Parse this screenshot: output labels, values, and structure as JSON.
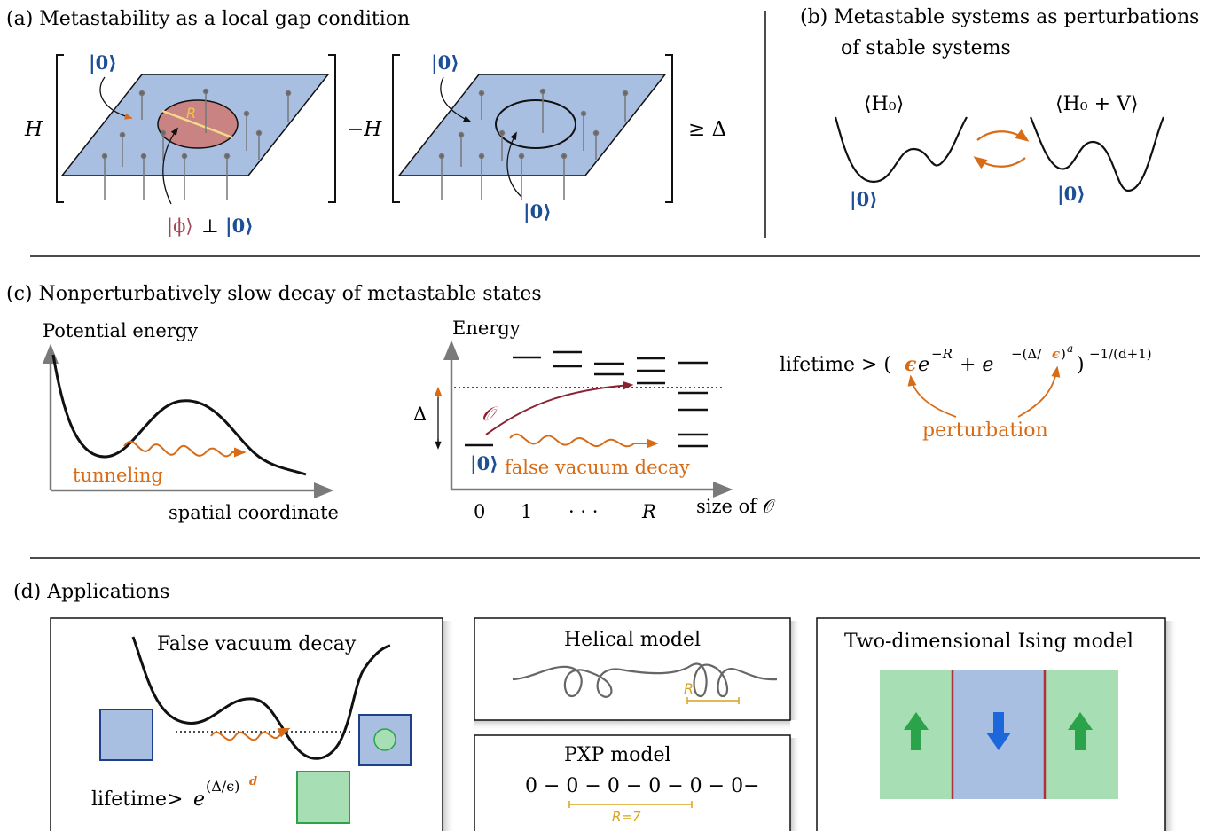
{
  "panel_a": {
    "title": "(a) Metastability as a local gap condition",
    "H": "H",
    "minus_H": "−H",
    "ket0": "|0⟩",
    "R": "R",
    "phi": "|ϕ⟩",
    "perp": "⊥",
    "geq": "≥ Δ"
  },
  "panel_b": {
    "title_line1": "(b) Metastable systems as perturbations",
    "title_line2": "of stable systems",
    "H0": "⟨H₀⟩",
    "H0V": "⟨H₀ + V⟩",
    "ket0": "|0⟩"
  },
  "panel_c": {
    "title": "(c) Nonperturbatively slow decay of metastable states",
    "potential_energy": "Potential energy",
    "spatial_coordinate": "spatial coordinate",
    "tunneling": "tunneling",
    "energy": "Energy",
    "delta": "Δ",
    "O": "𝒪",
    "ket0": "|0⟩",
    "false_vacuum_decay": "false vacuum decay",
    "ticks": [
      "0",
      "1",
      "· · ·",
      "R"
    ],
    "size_of_O": "size of 𝒪",
    "lifetime_prefix": "lifetime > (",
    "eps": "ϵ",
    "e_part1": "e",
    "exp1": "−R",
    "plus_e": " + e",
    "exp2_a": "−(Δ/",
    "exp2_eps": "ϵ",
    "exp2_b": ")",
    "exp2_sup": "a",
    "close_paren": ")",
    "exp3": "−1/(d+1)",
    "perturbation": "perturbation"
  },
  "panel_d": {
    "title": "(d) Applications",
    "false_vacuum": {
      "title": "False vacuum decay",
      "lifetime": "lifetime>",
      "e": "e",
      "exp": "(Δ/ϵ)",
      "d": "d"
    },
    "helical": {
      "title": "Helical model",
      "R": "R"
    },
    "pxp": {
      "title": "PXP model",
      "chain": "0 − 0 − 0 − 0 − 0 − 0−",
      "R": "R=7"
    },
    "ising": {
      "title": "Two-dimensional Ising model"
    }
  },
  "colors": {
    "blue_plane": "#a8bfe2",
    "red_disk": "#c98383",
    "orange": "#d86b16",
    "dark_red": "#8a2030",
    "ket_blue": "#1e4f96",
    "phi_red": "#a04a58",
    "gold": "#d9a21a",
    "green_fill": "#a8deb3",
    "green_arrow": "#2ba34b",
    "blue_arrow": "#1c67d9",
    "ising_wall": "#b03040"
  }
}
